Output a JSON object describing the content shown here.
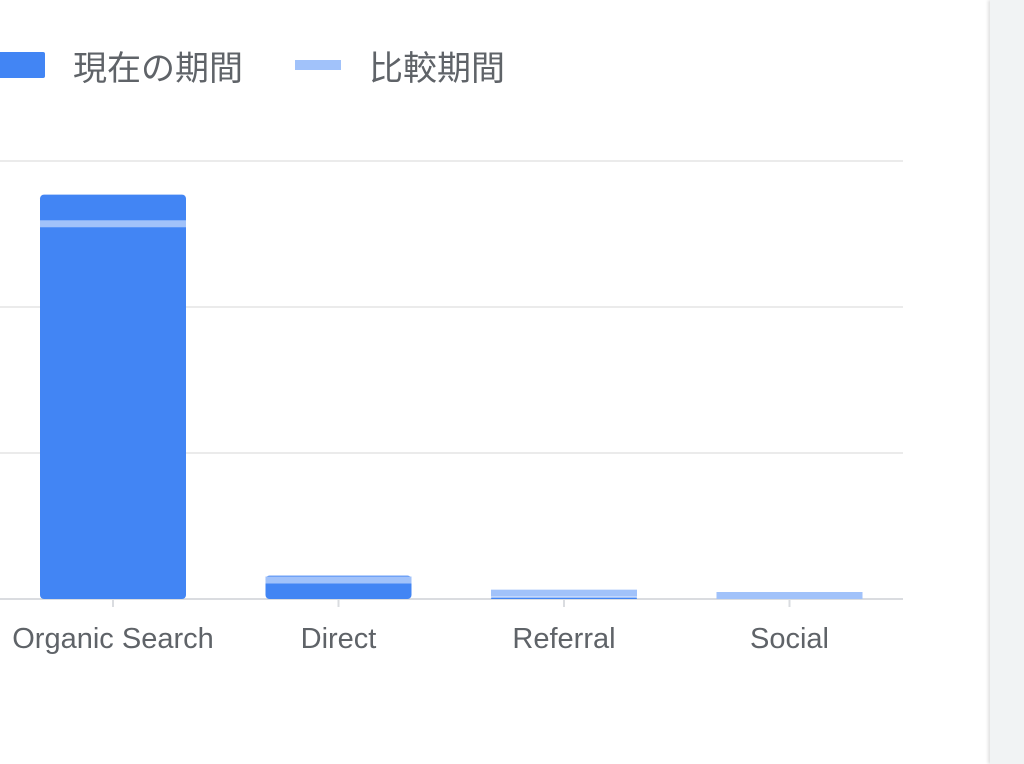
{
  "chart_data": {
    "type": "bar",
    "title": "",
    "xlabel": "",
    "ylabel": "",
    "categories": [
      "Organic Search",
      "Direct",
      "Referral",
      "Social"
    ],
    "series": [
      {
        "name": "現在の期間",
        "values": [
          2.77,
          0.16,
          0.01,
          0.0
        ],
        "color": "#4285f4",
        "style": "bar"
      },
      {
        "name": "比較期間",
        "values": [
          2.57,
          0.13,
          0.04,
          0.015
        ],
        "color": "#a1c2fa",
        "style": "marker-line"
      }
    ],
    "ylim": [
      0,
      3
    ],
    "grid": true,
    "legend": "top-left"
  }
}
